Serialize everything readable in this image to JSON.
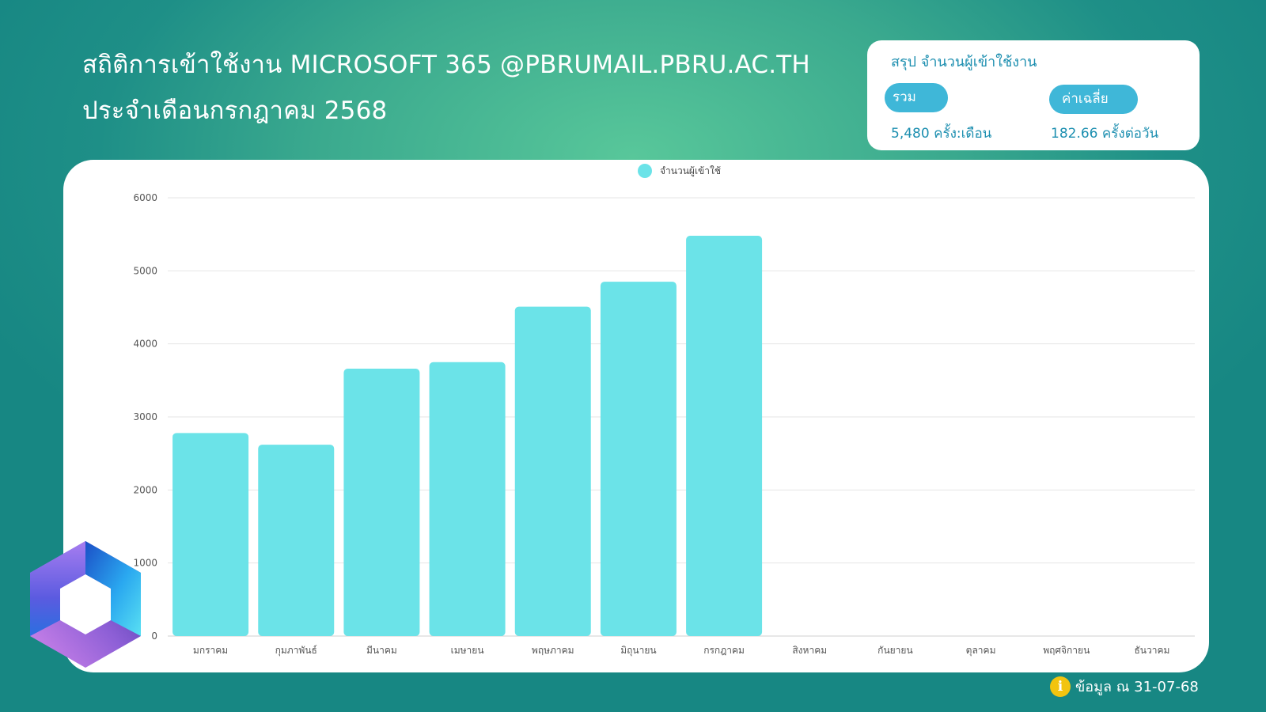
{
  "header": {
    "title_line1": "สถิติการเข้าใช้งาน MICROSOFT 365 @PBRUMAIL.PBRU.AC.TH",
    "title_line2": "ประจำเดือนกรกฎาคม 2568"
  },
  "summary": {
    "title": "สรุป จำนวนผู้เข้าใช้งาน",
    "total_label": "รวม",
    "total_value": "5,480 ครั้ง:เดือน",
    "avg_label": "ค่าเฉลี่ย",
    "avg_value": "182.66 ครั้งต่อวัน"
  },
  "footer": {
    "note": "ข้อมูล ณ 31-07-68"
  },
  "icons": {
    "logo": "microsoft-365-logo-icon",
    "info": "info-icon"
  },
  "colors": {
    "bar": "#6be3e8",
    "accent": "#3fb7d8",
    "summary_text": "#1d8fb0"
  },
  "chart_data": {
    "type": "bar",
    "legend": "จำนวนผู้เข้าใช้",
    "legend_position": "top-center",
    "grid": true,
    "categories": [
      "มกราคม",
      "กุมภาพันธ์",
      "มีนาคม",
      "เมษายน",
      "พฤษภาคม",
      "มิถุนายน",
      "กรกฎาคม",
      "สิงหาคม",
      "กันยายน",
      "ตุลาคม",
      "พฤศจิกายน",
      "ธันวาคม"
    ],
    "values": [
      2780,
      2620,
      3660,
      3750,
      4510,
      4850,
      5480,
      null,
      null,
      null,
      null,
      null
    ],
    "ylim": [
      0,
      6000
    ],
    "yticks": [
      0,
      1000,
      2000,
      3000,
      4000,
      5000,
      6000
    ]
  }
}
